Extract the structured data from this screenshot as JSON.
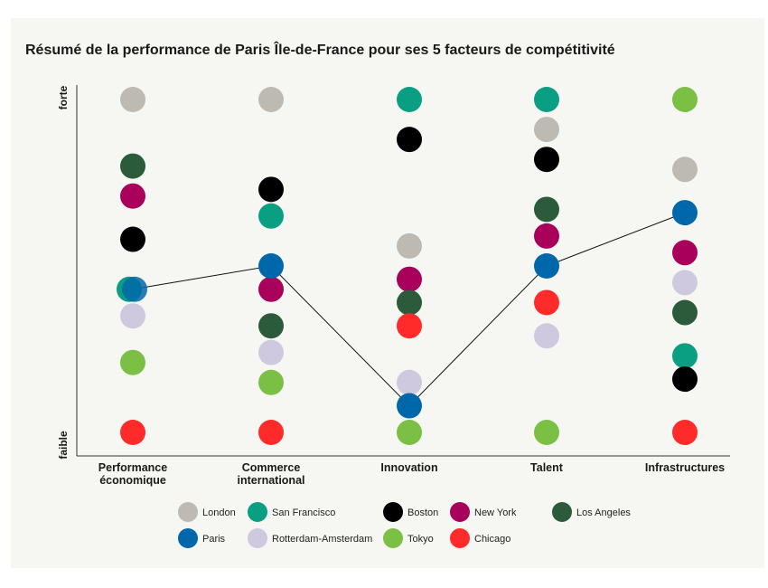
{
  "chart_data": {
    "type": "scatter",
    "title": "Résumé de la performance de Paris Île-de-France pour ses 5 facteurs de compétitivité",
    "ylabel_top": "forte",
    "ylabel_bottom": "faible",
    "ylim": [
      0,
      100
    ],
    "categories": [
      "Performance économique",
      "Commerce international",
      "Innovation",
      "Talent",
      "Infrastructures"
    ],
    "highlight_series": "Paris",
    "series": [
      {
        "name": "London",
        "color": "#bdbab3",
        "values": [
          100,
          100,
          56,
          91,
          79
        ]
      },
      {
        "name": "San Francisco",
        "color": "#0a9e82",
        "values": [
          43,
          65,
          100,
          100,
          23
        ]
      },
      {
        "name": "Boston",
        "color": "#000000",
        "values": [
          58,
          73,
          88,
          82,
          16
        ]
      },
      {
        "name": "New York",
        "color": "#a8005b",
        "values": [
          71,
          43,
          46,
          59,
          54
        ]
      },
      {
        "name": "Los Angeles",
        "color": "#2b5b3b",
        "values": [
          80,
          32,
          39,
          67,
          36
        ]
      },
      {
        "name": "Paris",
        "color": "#0068aa",
        "values": [
          43,
          50,
          8,
          50,
          66
        ]
      },
      {
        "name": "Rotterdam-Amsterdam",
        "color": "#cfc9e0",
        "values": [
          35,
          24,
          15,
          29,
          45
        ]
      },
      {
        "name": "Tokyo",
        "color": "#7bc044",
        "values": [
          21,
          15,
          0,
          0,
          100
        ]
      },
      {
        "name": "Chicago",
        "color": "#ff2a2a",
        "values": [
          0,
          0,
          32,
          39,
          0
        ]
      }
    ]
  },
  "legend": {
    "row1": [
      "London",
      "San Francisco",
      "Boston",
      "New York",
      "Los Angeles"
    ],
    "row2": [
      "Paris",
      "Rotterdam-Amsterdam",
      "Tokyo",
      "Chicago"
    ]
  }
}
